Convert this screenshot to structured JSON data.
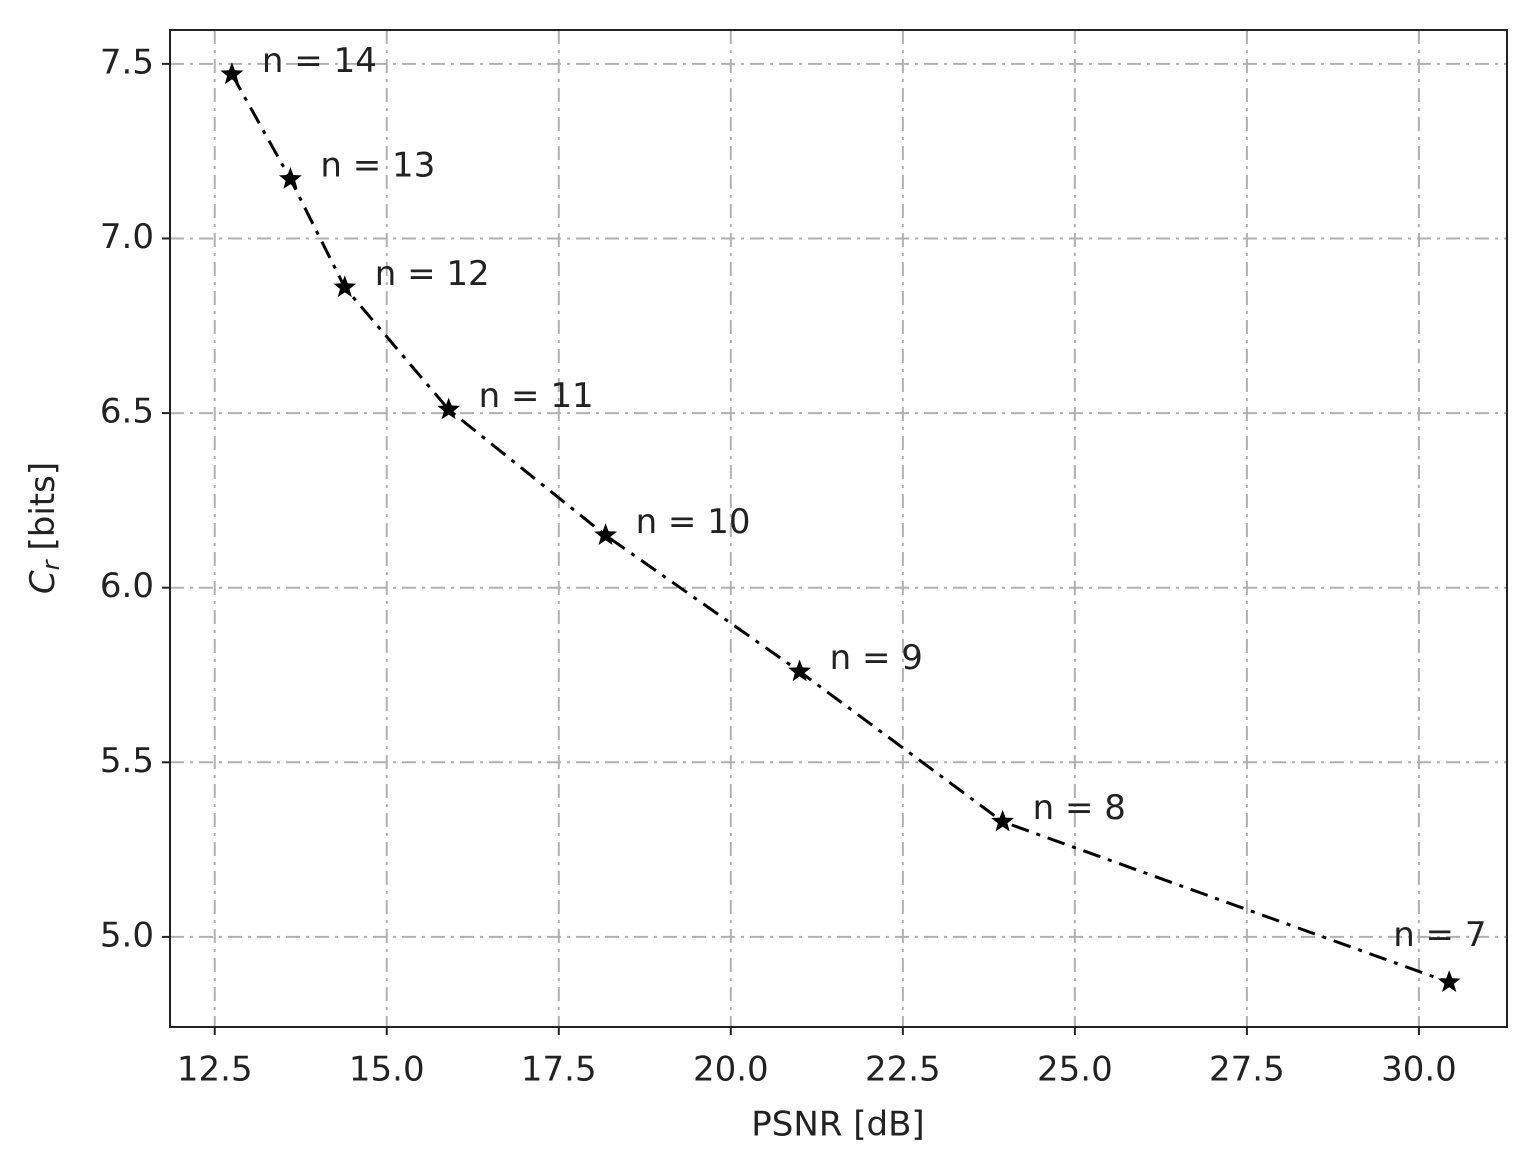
{
  "chart_data": {
    "type": "line",
    "x_label": "PSNR [dB]",
    "y_label": {
      "symbol": "C",
      "subscript": "r",
      "unit": "[bits]"
    },
    "x": [
      12.75,
      13.6,
      14.39,
      15.9,
      18.18,
      21.0,
      23.95,
      30.44
    ],
    "series": [
      {
        "color": "#000000",
        "values": [
          7.47,
          7.17,
          6.86,
          6.51,
          6.15,
          5.76,
          5.33,
          4.87
        ],
        "point_labels": [
          "n = 14",
          "n = 13",
          "n = 12",
          "n = 11",
          "n = 10",
          "n = 9",
          "n = 8",
          "n = 7"
        ]
      }
    ],
    "xlim": [
      11.85,
      31.28
    ],
    "ylim": [
      4.742,
      7.597
    ],
    "xticks": [
      12.5,
      {
        "value": 15.0,
        "label": "15.0"
      },
      17.5,
      {
        "value": 20.0,
        "label": "20.0"
      },
      22.5,
      {
        "value": 25.0,
        "label": "25.0"
      },
      27.5,
      {
        "value": 30.0,
        "label": "30.0"
      }
    ],
    "yticks": [
      {
        "value": 5.0,
        "label": "5.0"
      },
      5.5,
      {
        "value": 6.0,
        "label": "6.0"
      },
      6.5,
      {
        "value": 7.0,
        "label": "7.0"
      },
      7.5
    ],
    "grid": true
  }
}
